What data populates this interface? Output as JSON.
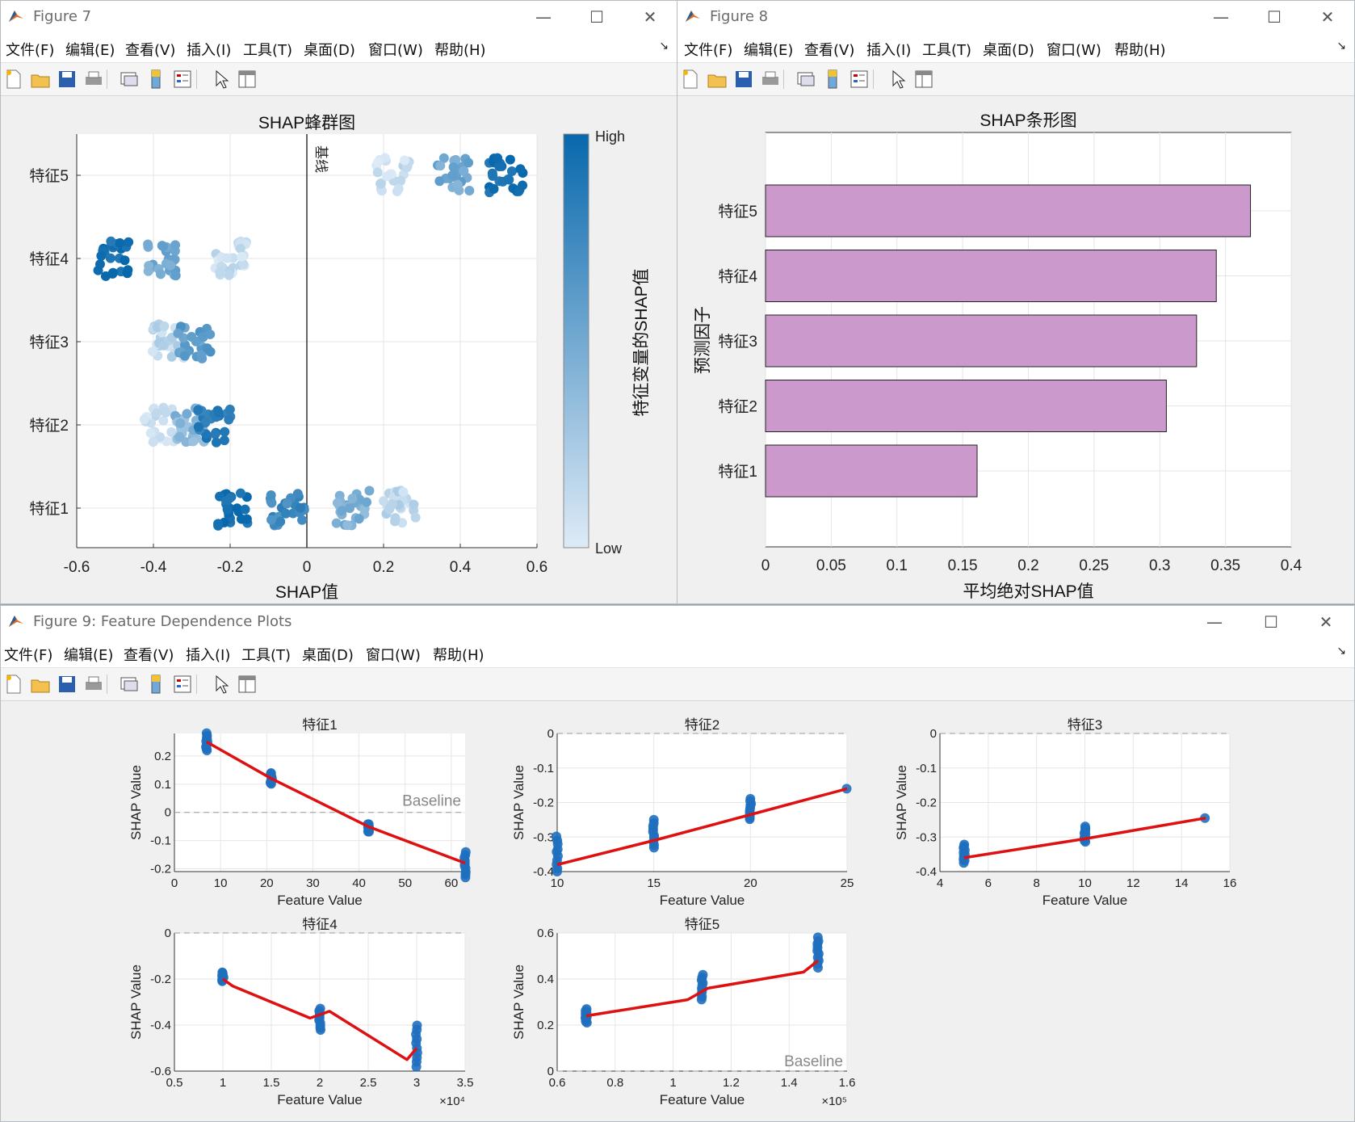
{
  "menus": [
    "文件(F)",
    "编辑(E)",
    "查看(V)",
    "插入(I)",
    "工具(T)",
    "桌面(D)",
    "窗口(W)",
    "帮助(H)"
  ],
  "toolbar_icons": [
    "new-figure-icon",
    "open-file-icon",
    "save-icon",
    "print-icon",
    "link-plot-icon",
    "colorbar-icon",
    "legend-icon",
    "pointer-icon",
    "property-inspector-icon"
  ],
  "window_controls": {
    "minimize": "—",
    "maximize": "☐",
    "close": "✕"
  },
  "colors": {
    "dark_blue": "#0868ac",
    "light_blue": "#deebf7",
    "bar_fill": "#cc99cc",
    "fit_line": "#dd1111"
  },
  "fig7": {
    "title": "Figure 7",
    "chart_data": {
      "type": "scatter",
      "title": "SHAP蜂群图",
      "xlabel": "SHAP值",
      "ylabel": "",
      "xlim": [
        -0.6,
        0.6
      ],
      "xticks": [
        "-0.6",
        "-0.4",
        "-0.2",
        "0",
        "0.2",
        "0.4",
        "0.6"
      ],
      "categories": [
        "特征1",
        "特征2",
        "特征3",
        "特征4",
        "特征5"
      ],
      "baseline_label": "基线",
      "colorbar": {
        "label": "特征变量的SHAP值",
        "high": "High",
        "low": "Low"
      },
      "series": [
        {
          "feature": "特征1",
          "clusters": [
            {
              "x": -0.19,
              "level": 0.95
            },
            {
              "x": -0.05,
              "level": 0.75
            },
            {
              "x": 0.12,
              "level": 0.45
            },
            {
              "x": 0.245,
              "level": 0.15
            }
          ]
        },
        {
          "feature": "特征2",
          "clusters": [
            {
              "x": -0.38,
              "level": 0.1
            },
            {
              "x": -0.31,
              "level": 0.4
            },
            {
              "x": -0.24,
              "level": 0.85
            }
          ]
        },
        {
          "feature": "特征3",
          "clusters": [
            {
              "x": -0.36,
              "level": 0.15
            },
            {
              "x": -0.295,
              "level": 0.6
            }
          ]
        },
        {
          "feature": "特征4",
          "clusters": [
            {
              "x": -0.5,
              "level": 0.95
            },
            {
              "x": -0.385,
              "level": 0.5
            },
            {
              "x": -0.195,
              "level": 0.1
            }
          ]
        },
        {
          "feature": "特征5",
          "clusters": [
            {
              "x": 0.225,
              "level": 0.1
            },
            {
              "x": 0.38,
              "level": 0.5
            },
            {
              "x": 0.52,
              "level": 0.95
            }
          ]
        }
      ]
    }
  },
  "fig8": {
    "title": "Figure 8",
    "chart_data": {
      "type": "bar",
      "orientation": "horizontal",
      "title": "SHAP条形图",
      "xlabel": "平均绝对SHAP值",
      "ylabel": "预测因子",
      "categories": [
        "特征1",
        "特征2",
        "特征3",
        "特征4",
        "特征5"
      ],
      "values": [
        0.161,
        0.305,
        0.328,
        0.343,
        0.369
      ],
      "xlim": [
        0,
        0.4
      ],
      "xticks": [
        "0",
        "0.05",
        "0.1",
        "0.15",
        "0.2",
        "0.25",
        "0.3",
        "0.35",
        "0.4"
      ]
    }
  },
  "fig9": {
    "title": "Figure 9: Feature Dependence Plots",
    "chart_data": [
      {
        "type": "scatter",
        "title": "特征1",
        "xlabel": "Feature Value",
        "ylabel": "SHAP Value",
        "xlim": [
          0,
          63
        ],
        "ylim": [
          -0.21,
          0.28
        ],
        "xticks": [
          0,
          10,
          20,
          30,
          40,
          50,
          60
        ],
        "yticks": [
          -0.2,
          -0.1,
          0,
          0.1,
          0.2
        ],
        "tick_labels_y": [
          "-0.2",
          "-0.1",
          "0",
          "0.1",
          "0.2"
        ],
        "tick_labels_x": [
          "0",
          "10",
          "20",
          "30",
          "40",
          "50",
          "60"
        ],
        "baseline": 0,
        "baseline_label": "Baseline",
        "points_x": [
          7,
          21,
          42,
          63
        ],
        "points_y": [
          [
            0.22,
            0.28
          ],
          [
            0.1,
            0.14
          ],
          [
            -0.07,
            -0.04
          ],
          [
            -0.23,
            -0.14
          ]
        ],
        "fit": [
          [
            7,
            0.25
          ],
          [
            21,
            0.12
          ],
          [
            42,
            -0.05
          ],
          [
            63,
            -0.18
          ]
        ],
        "exponent": ""
      },
      {
        "type": "scatter",
        "title": "特征2",
        "xlabel": "Feature Value",
        "ylabel": "SHAP Value",
        "xlim": [
          10,
          25
        ],
        "ylim": [
          -0.4,
          0
        ],
        "xticks": [
          10,
          15,
          20,
          25
        ],
        "yticks": [
          -0.4,
          -0.3,
          -0.2,
          -0.1,
          0
        ],
        "tick_labels_y": [
          "-0.4",
          "-0.3",
          "-0.2",
          "-0.1",
          "0"
        ],
        "tick_labels_x": [
          "10",
          "15",
          "20",
          "25"
        ],
        "baseline": 0,
        "baseline_label": "",
        "points_x": [
          10,
          15,
          20,
          25
        ],
        "points_y": [
          [
            -0.4,
            -0.3
          ],
          [
            -0.33,
            -0.25
          ],
          [
            -0.25,
            -0.19
          ],
          [
            -0.16,
            -0.16
          ]
        ],
        "fit": [
          [
            10,
            -0.38
          ],
          [
            15,
            -0.31
          ],
          [
            20,
            -0.235
          ],
          [
            25,
            -0.16
          ]
        ],
        "exponent": ""
      },
      {
        "type": "scatter",
        "title": "特征3",
        "xlabel": "Feature Value",
        "ylabel": "SHAP Value",
        "xlim": [
          4,
          16
        ],
        "ylim": [
          -0.4,
          0
        ],
        "xticks": [
          4,
          6,
          8,
          10,
          12,
          14,
          16
        ],
        "yticks": [
          -0.4,
          -0.3,
          -0.2,
          -0.1,
          0
        ],
        "tick_labels_y": [
          "-0.4",
          "-0.3",
          "-0.2",
          "-0.1",
          "0"
        ],
        "tick_labels_x": [
          "4",
          "6",
          "8",
          "10",
          "12",
          "14",
          "16"
        ],
        "baseline": 0,
        "baseline_label": "",
        "points_x": [
          5,
          10,
          15
        ],
        "points_y": [
          [
            -0.375,
            -0.32
          ],
          [
            -0.315,
            -0.27
          ],
          [
            -0.245,
            -0.245
          ]
        ],
        "fit": [
          [
            5,
            -0.36
          ],
          [
            10,
            -0.305
          ],
          [
            15,
            -0.245
          ]
        ],
        "exponent": ""
      },
      {
        "type": "scatter",
        "title": "特征4",
        "xlabel": "Feature Value",
        "ylabel": "SHAP Value",
        "xlim": [
          0.5,
          3.5
        ],
        "ylim": [
          -0.6,
          0
        ],
        "xticks": [
          0.5,
          1,
          1.5,
          2,
          2.5,
          3,
          3.5
        ],
        "yticks": [
          -0.6,
          -0.4,
          -0.2,
          0
        ],
        "tick_labels_y": [
          "-0.6",
          "-0.4",
          "-0.2",
          "0"
        ],
        "tick_labels_x": [
          "0.5",
          "1",
          "1.5",
          "2",
          "2.5",
          "3",
          "3.5"
        ],
        "baseline": 0,
        "baseline_label": "",
        "points_x": [
          1,
          2,
          3
        ],
        "points_y": [
          [
            -0.21,
            -0.17
          ],
          [
            -0.42,
            -0.33
          ],
          [
            -0.58,
            -0.4
          ]
        ],
        "fit": [
          [
            1,
            -0.2
          ],
          [
            1.1,
            -0.23
          ],
          [
            1.9,
            -0.37
          ],
          [
            2.1,
            -0.34
          ],
          [
            2.9,
            -0.55
          ],
          [
            3,
            -0.5
          ]
        ],
        "exponent": "×10⁴"
      },
      {
        "type": "scatter",
        "title": "特征5",
        "xlabel": "Feature Value",
        "ylabel": "SHAP Value",
        "xlim": [
          0.6,
          1.6
        ],
        "ylim": [
          0,
          0.6
        ],
        "xticks": [
          0.6,
          0.8,
          1,
          1.2,
          1.4,
          1.6
        ],
        "yticks": [
          0,
          0.2,
          0.4,
          0.6
        ],
        "tick_labels_y": [
          "0",
          "0.2",
          "0.4",
          "0.6"
        ],
        "tick_labels_x": [
          "0.6",
          "0.8",
          "1",
          "1.2",
          "1.4",
          "1.6"
        ],
        "baseline": 0,
        "baseline_label": "Baseline",
        "points_x": [
          0.7,
          1.1,
          1.5
        ],
        "points_y": [
          [
            0.21,
            0.27
          ],
          [
            0.31,
            0.42
          ],
          [
            0.45,
            0.58
          ]
        ],
        "fit": [
          [
            0.7,
            0.24
          ],
          [
            1.05,
            0.31
          ],
          [
            1.12,
            0.36
          ],
          [
            1.45,
            0.43
          ],
          [
            1.5,
            0.48
          ]
        ],
        "exponent": "×10⁵"
      }
    ]
  }
}
